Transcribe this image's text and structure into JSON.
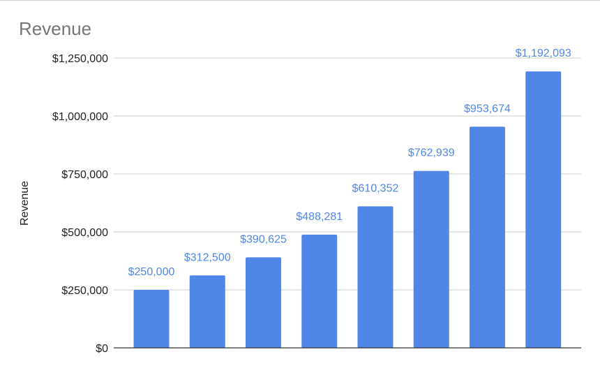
{
  "chart_data": {
    "type": "bar",
    "title": "Revenue",
    "xlabel": "",
    "ylabel": "Revenue",
    "categories": [
      "",
      "",
      "",
      "",
      "",
      "",
      "",
      ""
    ],
    "values": [
      250000,
      312500,
      390625,
      488281,
      610352,
      762939,
      953674,
      1192093
    ],
    "data_labels": [
      "$250,000",
      "$312,500",
      "$390,625",
      "$488,281",
      "$610,352",
      "$762,939",
      "$953,674",
      "$1,192,093"
    ],
    "ylim": [
      0,
      1250000
    ],
    "yticks": [
      0,
      250000,
      500000,
      750000,
      1000000,
      1250000
    ],
    "ytick_labels": [
      "$0",
      "$250,000",
      "$500,000",
      "$750,000",
      "$1,000,000",
      "$1,250,000"
    ],
    "grid": true,
    "legend": "none",
    "bar_color": "#4f86e8",
    "data_label_color": "#4f86e8"
  }
}
